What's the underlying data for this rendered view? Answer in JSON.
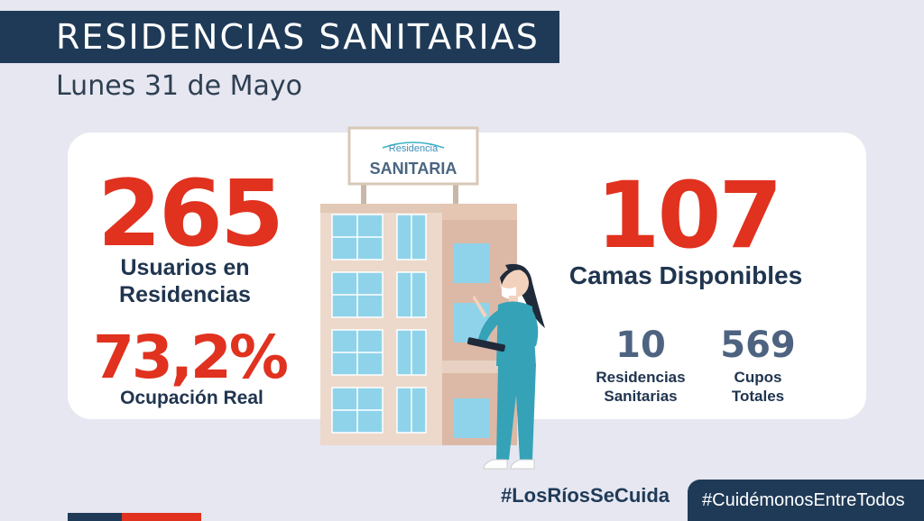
{
  "header": {
    "title": "RESIDENCIAS SANITARIAS",
    "date": "Lunes 31 de Mayo"
  },
  "left": {
    "users_value": "265",
    "users_label_line1": "Usuarios en",
    "users_label_line2": "Residencias",
    "occupancy_value": "73,2%",
    "occupancy_label": "Ocupación Real"
  },
  "right": {
    "beds_value": "107",
    "beds_label": "Camas Disponibles",
    "residences_value": "10",
    "residences_label_line1": "Residencias",
    "residences_label_line2": "Sanitarias",
    "slots_value": "569",
    "slots_label_line1": "Cupos",
    "slots_label_line2": "Totales"
  },
  "sign": {
    "line1": "Residencia",
    "line2": "SANITARIA"
  },
  "footer": {
    "hashtag1": "#LosRíosSeCuida",
    "hashtag2": "#CuidémonosEntreTodos"
  },
  "colors": {
    "navy": "#1f3a57",
    "red": "#e0321f",
    "background": "#e6e7f1",
    "stat_blue": "#4d6380"
  },
  "illustration": "building-with-nurse-illustration"
}
